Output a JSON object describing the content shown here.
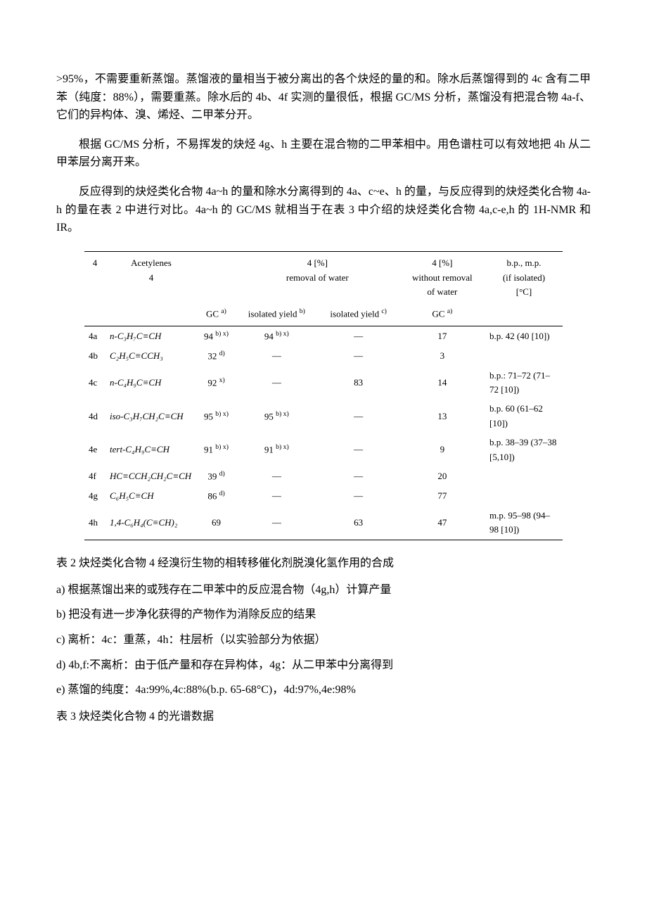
{
  "paragraphs": {
    "p1": ">95%，不需要重新蒸馏。蒸馏液的量相当于被分离出的各个炔烃的量的和。除水后蒸馏得到的 4c 含有二甲苯（纯度：88%），需要重蒸。除水后的 4b、4f 实测的量很低，根据 GC/MS 分析，蒸馏没有把混合物 4a-f、它们的异构体、溴、烯烃、二甲苯分开。",
    "p2": "根据 GC/MS 分析，不易挥发的炔烃 4g、h 主要在混合物的二甲苯相中。用色谱柱可以有效地把 4h 从二甲苯层分离开来。",
    "p3": "反应得到的炔烃类化合物 4a~h 的量和除水分离得到的 4a、c~e、h 的量，与反应得到的炔烃类化合物 4a-h 的量在表 2 中进行对比。4a~h 的 GC/MS 就相当于在表 3 中介绍的炔烃类化合物 4a,c-e,h 的 1H-NMR 和 IR。"
  },
  "table": {
    "header": {
      "col1": "4",
      "col2_line1": "Acetylenes",
      "col2_line2": "4",
      "col3_line1": "4 [%]",
      "col3_line2": "removal of water",
      "col4_line1": "4 [%]",
      "col4_line2": "without removal",
      "col4_line3": "of water",
      "col5_line1": "b.p., m.p.",
      "col5_line2": "(if isolated)",
      "col5_line3": "[°C]",
      "sub_gc": "GC",
      "sub_gc_sup": "a)",
      "sub_yield1": "isolated yield",
      "sub_yield1_sup": "b)",
      "sub_yield2": "isolated yield",
      "sub_yield2_sup": "c)"
    },
    "rows": [
      {
        "id": "4a",
        "formula": "n-C₃H₇C≡CH",
        "gc1": "94",
        "gc1_sup": "b) x)",
        "yield1": "94",
        "yield1_sup": "b) x)",
        "yield2": "—",
        "gc2": "17",
        "bp": "b.p. 42 (40 [10])"
      },
      {
        "id": "4b",
        "formula": "C₂H₅C≡CCH₃",
        "gc1": "32",
        "gc1_sup": "d)",
        "yield1": "—",
        "yield1_sup": "",
        "yield2": "—",
        "gc2": "3",
        "bp": ""
      },
      {
        "id": "4c",
        "formula": "n-C₄H₉C≡CH",
        "gc1": "92",
        "gc1_sup": "x)",
        "yield1": "—",
        "yield1_sup": "",
        "yield2": "83",
        "gc2": "14",
        "bp": "b.p.: 71–72 (71–72 [10])"
      },
      {
        "id": "4d",
        "formula": "iso-C₃H₇CH₂C≡CH",
        "gc1": "95",
        "gc1_sup": "b) x)",
        "yield1": "95",
        "yield1_sup": "b) x)",
        "yield2": "—",
        "gc2": "13",
        "bp": "b.p. 60 (61–62 [10])"
      },
      {
        "id": "4e",
        "formula": "tert-C₄H₉C≡CH",
        "gc1": "91",
        "gc1_sup": "b) x)",
        "yield1": "91",
        "yield1_sup": "b) x)",
        "yield2": "—",
        "gc2": "9",
        "bp": "b.p. 38–39 (37–38 [5,10])"
      },
      {
        "id": "4f",
        "formula": "HC≡CCH₂CH₂C≡CH",
        "gc1": "39",
        "gc1_sup": "d)",
        "yield1": "—",
        "yield1_sup": "",
        "yield2": "—",
        "gc2": "20",
        "bp": ""
      },
      {
        "id": "4g",
        "formula": "C₆H₅C≡CH",
        "gc1": "86",
        "gc1_sup": "d)",
        "yield1": "—",
        "yield1_sup": "",
        "yield2": "—",
        "gc2": "77",
        "bp": ""
      },
      {
        "id": "4h",
        "formula": "1,4-C₆H₄(C≡CH)₂",
        "gc1": "69",
        "gc1_sup": "",
        "yield1": "—",
        "yield1_sup": "",
        "yield2": "63",
        "gc2": "47",
        "bp": "m.p. 95–98 (94–98 [10])"
      }
    ]
  },
  "captions": {
    "table2_caption": "表 2 炔烃类化合物 4 经溴衍生物的相转移催化剂脱溴化氢作用的合成",
    "note_a": "a) 根据蒸馏出来的或残存在二甲苯中的反应混合物（4g,h）计算产量",
    "note_b": "b) 把没有进一步净化获得的产物作为消除反应的结果",
    "note_c": "c) 离析：4c：重蒸，4h：柱层析（以实验部分为依据）",
    "note_d": "d) 4b,f:不离析：由于低产量和存在异构体，4g：从二甲苯中分离得到",
    "note_e": "e) 蒸馏的纯度：4a:99%,4c:88%(b.p. 65-68°C)，4d:97%,4e:98%",
    "table3_caption": "表 3 炔烃类化合物 4 的光谱数据"
  }
}
